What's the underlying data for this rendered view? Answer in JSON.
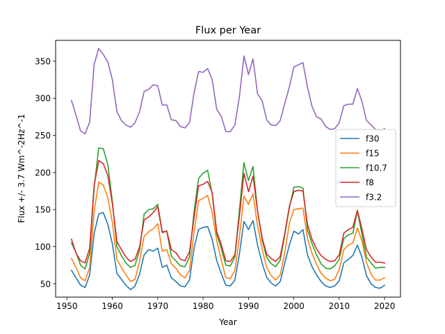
{
  "chart_data": {
    "type": "line",
    "title": "Flux per Year",
    "xlabel": "Year",
    "ylabel": "Flux  +/- 3.7  Wm^-2Hz^-1",
    "xlim": [
      1947.5,
      2023.5
    ],
    "ylim": [
      32,
      378
    ],
    "xticks": [
      1950,
      1960,
      1970,
      1980,
      1990,
      2000,
      2010,
      2020
    ],
    "yticks": [
      50,
      100,
      150,
      200,
      250,
      300,
      350
    ],
    "grid": false,
    "legend_position": "center-right",
    "x": [
      1951,
      1952,
      1953,
      1954,
      1955,
      1956,
      1957,
      1958,
      1959,
      1960,
      1961,
      1962,
      1963,
      1964,
      1965,
      1966,
      1967,
      1968,
      1969,
      1970,
      1971,
      1972,
      1973,
      1974,
      1975,
      1976,
      1977,
      1978,
      1979,
      1980,
      1981,
      1982,
      1983,
      1984,
      1985,
      1986,
      1987,
      1988,
      1989,
      1990,
      1991,
      1992,
      1993,
      1994,
      1995,
      1996,
      1997,
      1998,
      1999,
      2000,
      2001,
      2002,
      2003,
      2004,
      2005,
      2006,
      2007,
      2008,
      2009,
      2010,
      2011,
      2012,
      2013,
      2014,
      2015,
      2016,
      2017,
      2018,
      2019,
      2020
    ],
    "series": [
      {
        "name": "f30",
        "color": "#1f77b4",
        "values": [
          68,
          58,
          48,
          45,
          62,
          118,
          144,
          146,
          130,
          104,
          64,
          56,
          48,
          42,
          47,
          63,
          89,
          96,
          94,
          98,
          72,
          75,
          58,
          53,
          47,
          46,
          55,
          98,
          123,
          126,
          127,
          110,
          81,
          64,
          48,
          47,
          55,
          90,
          134,
          123,
          135,
          102,
          78,
          59,
          51,
          47,
          53,
          78,
          102,
          121,
          117,
          123,
          89,
          73,
          62,
          53,
          47,
          45,
          47,
          54,
          78,
          83,
          88,
          102,
          86,
          61,
          50,
          45,
          44,
          48
        ]
      },
      {
        "name": "f15",
        "color": "#ff7f0e",
        "values": [
          84,
          72,
          58,
          54,
          72,
          148,
          187,
          183,
          166,
          133,
          83,
          72,
          62,
          53,
          56,
          80,
          114,
          120,
          124,
          131,
          94,
          96,
          77,
          71,
          62,
          58,
          68,
          119,
          162,
          165,
          169,
          146,
          108,
          82,
          58,
          57,
          68,
          113,
          168,
          157,
          171,
          128,
          97,
          72,
          61,
          55,
          62,
          92,
          131,
          150,
          151,
          152,
          111,
          91,
          76,
          64,
          58,
          54,
          56,
          69,
          96,
          102,
          105,
          125,
          108,
          79,
          63,
          55,
          55,
          58
        ]
      },
      {
        "name": "f10.7",
        "color": "#2ca02c",
        "values": [
          105,
          92,
          75,
          70,
          91,
          180,
          233,
          232,
          211,
          161,
          100,
          88,
          78,
          72,
          75,
          95,
          144,
          150,
          151,
          157,
          120,
          121,
          87,
          81,
          74,
          73,
          86,
          147,
          192,
          199,
          203,
          171,
          117,
          98,
          75,
          74,
          86,
          149,
          213,
          189,
          208,
          148,
          109,
          86,
          77,
          73,
          82,
          116,
          152,
          180,
          181,
          179,
          123,
          104,
          89,
          77,
          71,
          70,
          74,
          83,
          111,
          116,
          118,
          148,
          117,
          86,
          78,
          71,
          72,
          72
        ]
      },
      {
        "name": "f8",
        "color": "#d62728",
        "values": [
          110,
          91,
          81,
          78,
          98,
          183,
          216,
          212,
          196,
          158,
          107,
          96,
          86,
          80,
          83,
          100,
          136,
          140,
          146,
          154,
          119,
          121,
          96,
          92,
          83,
          81,
          93,
          139,
          182,
          184,
          188,
          173,
          120,
          103,
          81,
          80,
          89,
          141,
          199,
          174,
          195,
          148,
          112,
          90,
          84,
          80,
          87,
          118,
          154,
          174,
          176,
          175,
          130,
          110,
          97,
          88,
          83,
          80,
          81,
          89,
          118,
          123,
          126,
          149,
          124,
          96,
          86,
          79,
          79,
          78
        ]
      },
      {
        "name": "f3.2",
        "color": "#9467bd",
        "values": [
          297,
          277,
          256,
          252,
          268,
          346,
          367,
          359,
          349,
          325,
          282,
          270,
          264,
          261,
          267,
          282,
          309,
          312,
          318,
          317,
          291,
          291,
          271,
          270,
          262,
          260,
          267,
          307,
          336,
          335,
          340,
          325,
          285,
          276,
          255,
          255,
          264,
          302,
          357,
          332,
          353,
          306,
          297,
          271,
          264,
          263,
          270,
          293,
          315,
          342,
          345,
          348,
          315,
          289,
          275,
          272,
          262,
          258,
          259,
          267,
          290,
          292,
          292,
          313,
          296,
          270,
          264,
          258,
          256,
          259
        ]
      }
    ]
  }
}
